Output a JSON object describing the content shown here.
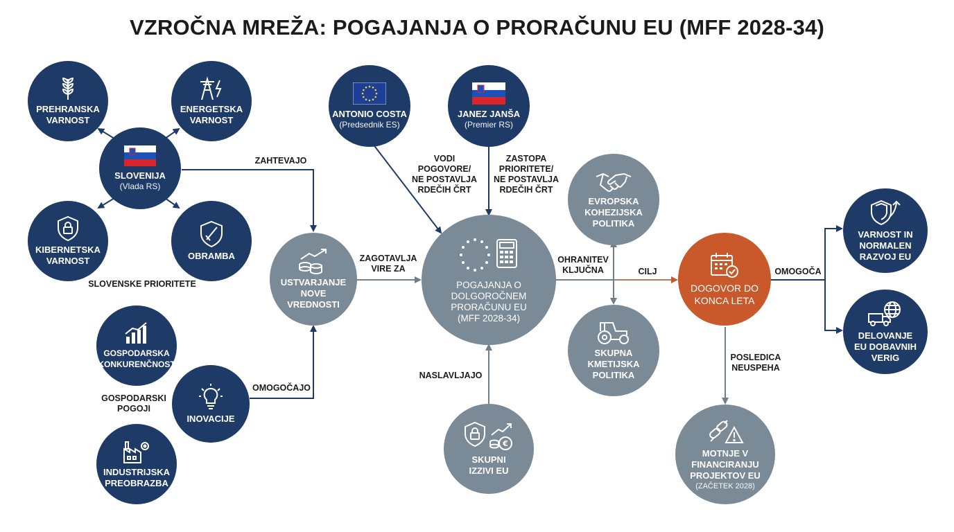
{
  "title": "VZROČNA MREŽA: POGAJANJA O PRORAČUNU EU (MFF 2028-34)",
  "colors": {
    "navy": "#1e3a66",
    "gray": "#7a8a96",
    "orange": "#c9582b",
    "edge": "#7a8a96",
    "edge_orange": "#c9582b"
  },
  "nodes": {
    "prehranska": {
      "label": "PREHRANSKA\nVARNOST",
      "icon": "wheat-icon"
    },
    "energetska": {
      "label": "ENERGETSKA\nVARNOST",
      "icon": "power-tower-icon"
    },
    "slovenija": {
      "label": "SLOVENIJA",
      "sub": "(Vlada RS)",
      "icon": "slovenia-flag-icon"
    },
    "kibernetska": {
      "label": "KIBERNETSKA\nVARNOST",
      "icon": "shield-lock-icon"
    },
    "obramba": {
      "label": "OBRAMBA",
      "icon": "shield-sword-icon"
    },
    "gospodarska": {
      "label": "GOSPODARSKA\nKONKURENČNOST",
      "icon": "growth-chart-icon"
    },
    "inovacije": {
      "label": "INOVACIJE",
      "icon": "lightbulb-icon"
    },
    "industrijska": {
      "label": "INDUSTRIJSKA\nPREOBRAZBA",
      "icon": "factory-gear-icon"
    },
    "ustvarjanje": {
      "label": "USTVARJANJE\nNOVE\nVREDNOSTI",
      "icon": "coins-growth-icon"
    },
    "costa": {
      "label": "ANTONIO COSTA",
      "sub": "(Predsednik ES)",
      "icon": "eu-flag-icon"
    },
    "jansa": {
      "label": "JANEZ JANŠA",
      "sub": "(Premier RS)",
      "icon": "slovenia-flag-icon"
    },
    "mff": {
      "label": "POGAJANJA O\nDOLGOROČNEM\nPRORAČUNU EU\n(MFF 2028-34)",
      "icon": "eu-stars-calculator-icon"
    },
    "izzivi": {
      "label": "SKUPNI\nIZZIVI EU",
      "icon": "shield-euro-icon"
    },
    "kohezijska": {
      "label": "EVROPSKA\nKOHEZIJSKA\nPOLITIKA",
      "icon": "handshake-icon"
    },
    "kmetijska": {
      "label": "SKUPNA\nKMETIJSKA\nPOLITIKA",
      "icon": "tractor-icon"
    },
    "dogovor": {
      "label": "DOGOVOR DO\nKONCA LETA",
      "icon": "calendar-check-icon"
    },
    "motnje": {
      "label": "MOTNJE V\nFINANCIRANJU\nPROJEKTOV EU",
      "sub": "(ZAČETEK 2028)",
      "icon": "broken-chain-warning-icon"
    },
    "varnost_razvoj": {
      "label": "VARNOST IN\nNORMALEN\nRAZVOJ EU",
      "icon": "shield-arrow-icon"
    },
    "dobavne": {
      "label": "DELOVANJE\nEU DOBAVNIH\nVERIG",
      "icon": "truck-globe-icon"
    }
  },
  "edge_labels": {
    "zahtevajo": "ZAHTEVAJO",
    "omogocajo": "OMOGOČAJO",
    "zagotavlja": "ZAGOTAVLJA\nVIRE ZA",
    "vodi": "VODI\nPOGOVORE/\nNE POSTAVLJA\nRDEČIH ČRT",
    "zastopa": "ZASTOPA\nPRIORITETE/\nNE POSTAVLJA\nRDEČIH ČRT",
    "naslavljajo": "NASLAVLJAJO",
    "ohranitev": "OHRANITEV\nKLJUČNA",
    "cilj": "CILJ",
    "omogoca": "OMOGOČA",
    "posledica": "POSLEDICA\nNEUSPEHA"
  },
  "group_labels": {
    "slovenske": "SLOVENSKE PRIORITETE",
    "gospodarski": "GOSPODARSKI\nPOGOJI"
  }
}
